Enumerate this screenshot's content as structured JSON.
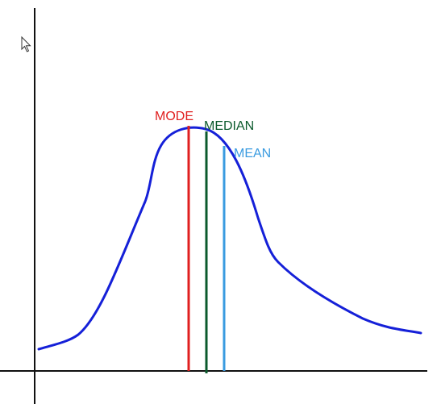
{
  "labels": {
    "mode": "MODE",
    "median": "MEDIAN",
    "mean": "MEAN"
  },
  "icons": {
    "cursor": "mouse-pointer-icon"
  },
  "colors": {
    "curve": "#1520d8",
    "mode": "#e02020",
    "median": "#0b5a2c",
    "mean": "#3a9be0",
    "axis": "#111111"
  }
}
